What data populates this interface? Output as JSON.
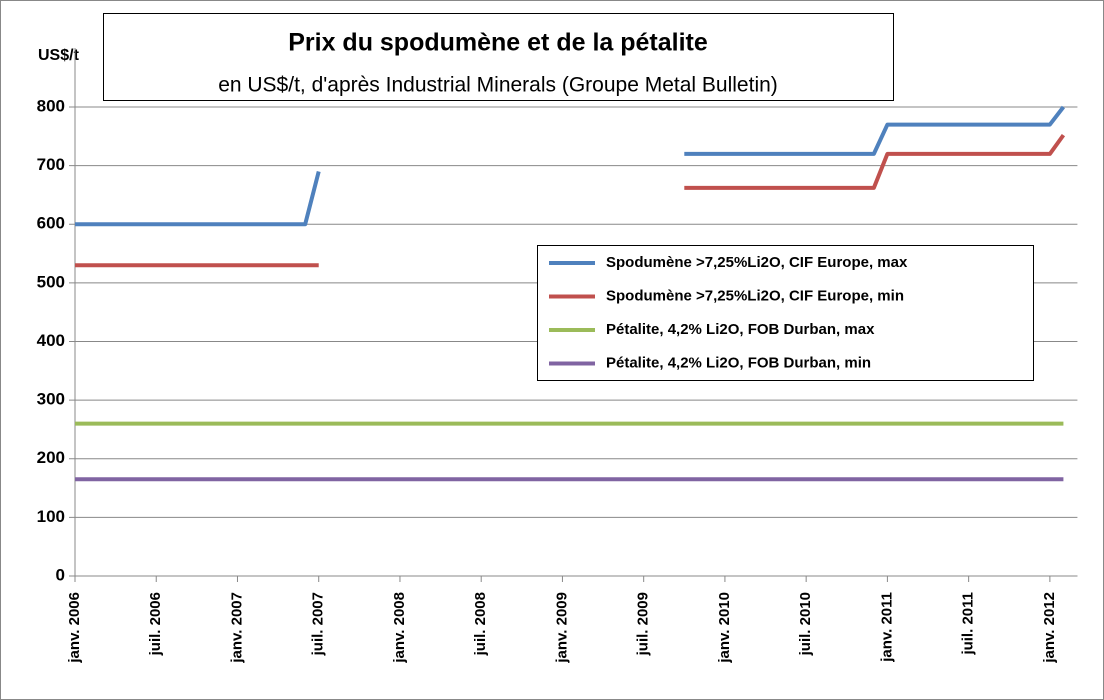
{
  "chart_data": {
    "type": "line",
    "title": "Prix du spodumène et de la pétalite",
    "subtitle": "en US$/t, d'après Industrial Minerals (Groupe Metal Bulletin)",
    "y_label": "US$/t",
    "x": [
      "2006-01",
      "2007-06",
      "2007-07",
      "2008-08",
      "2009-10",
      "2010-12",
      "2011-01",
      "2012-01",
      "2012-02"
    ],
    "series": [
      {
        "name": "Spodumène >7,25%Li2O, CIF Europe, max",
        "color": "#4f81bd",
        "values": [
          600,
          600,
          690,
          null,
          720,
          720,
          770,
          770,
          800
        ]
      },
      {
        "name": "Spodumène >7,25%Li2O, CIF Europe, min",
        "color": "#c0504d",
        "values": [
          530,
          530,
          530,
          null,
          662,
          662,
          720,
          720,
          752
        ]
      },
      {
        "name": "Pétalite, 4,2% Li2O, FOB Durban, max",
        "color": "#9bbb59",
        "values": [
          260,
          260,
          260,
          260,
          260,
          260,
          260,
          260,
          260
        ]
      },
      {
        "name": "Pétalite, 4,2% Li2O, FOB Durban, min",
        "color": "#8064a2",
        "values": [
          165,
          165,
          165,
          165,
          165,
          165,
          165,
          165,
          165
        ]
      }
    ],
    "xlim": [
      "2006-01",
      "2012-02"
    ],
    "xticks": [
      {
        "value": "2006-01",
        "label": "janv. 2006"
      },
      {
        "value": "2006-07",
        "label": "juil. 2006"
      },
      {
        "value": "2007-01",
        "label": "janv. 2007"
      },
      {
        "value": "2007-07",
        "label": "juil. 2007"
      },
      {
        "value": "2008-01",
        "label": "janv. 2008"
      },
      {
        "value": "2008-07",
        "label": "juil. 2008"
      },
      {
        "value": "2009-01",
        "label": "janv. 2009"
      },
      {
        "value": "2009-07",
        "label": "juil. 2009"
      },
      {
        "value": "2010-01",
        "label": "janv. 2010"
      },
      {
        "value": "2010-07",
        "label": "juil. 2010"
      },
      {
        "value": "2011-01",
        "label": "janv. 2011"
      },
      {
        "value": "2011-07",
        "label": "juil. 2011"
      },
      {
        "value": "2012-01",
        "label": "janv. 2012"
      }
    ],
    "ylim": [
      0,
      800
    ],
    "yticks": [
      0,
      100,
      200,
      300,
      400,
      500,
      600,
      700,
      800
    ],
    "grid": true,
    "legend": "right"
  }
}
